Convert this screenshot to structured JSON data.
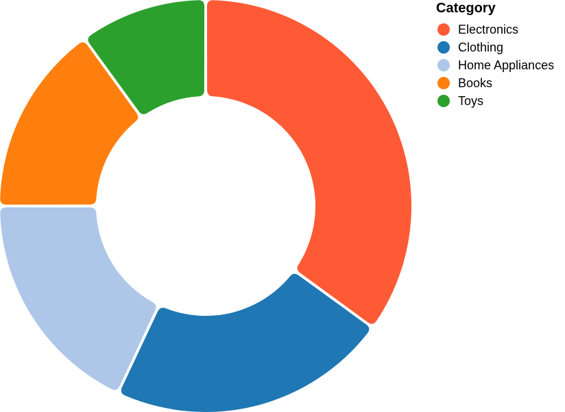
{
  "chart_data": {
    "type": "pie",
    "donut": true,
    "legend": {
      "title": "Category",
      "placement": "top-right"
    },
    "start_angle_deg": 0,
    "direction": "clockwise",
    "slices": [
      {
        "label": "Electronics",
        "value": 35,
        "color": "#ff5a36"
      },
      {
        "label": "Clothing",
        "value": 22,
        "color": "#1f77b4"
      },
      {
        "label": "Home Appliances",
        "value": 18,
        "color": "#aec7e8"
      },
      {
        "label": "Books",
        "value": 15,
        "color": "#ff7f0e"
      },
      {
        "label": "Toys",
        "value": 10,
        "color": "#2ca02c"
      }
    ]
  }
}
